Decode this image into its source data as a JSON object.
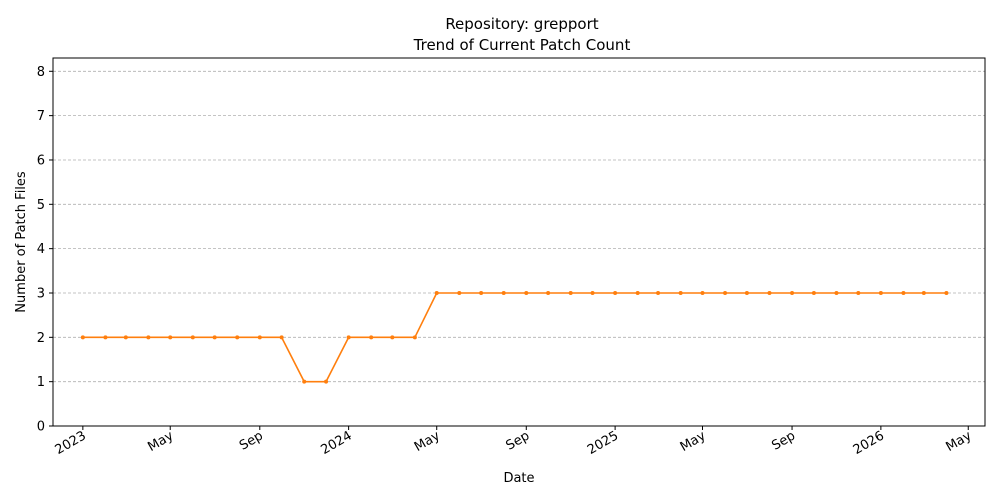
{
  "chart_data": {
    "type": "line",
    "title": "Repository: grepport",
    "subtitle": "Trend of Current Patch Count",
    "xlabel": "Date",
    "ylabel": "Number of Patch Files",
    "x_ticks": [
      {
        "date": "2023-01-01",
        "label": "2023"
      },
      {
        "date": "2023-05-01",
        "label": "May"
      },
      {
        "date": "2023-09-01",
        "label": "Sep"
      },
      {
        "date": "2024-01-01",
        "label": "2024"
      },
      {
        "date": "2024-05-01",
        "label": "May"
      },
      {
        "date": "2024-09-01",
        "label": "Sep"
      },
      {
        "date": "2025-01-01",
        "label": "2025"
      },
      {
        "date": "2025-05-01",
        "label": "May"
      },
      {
        "date": "2025-09-01",
        "label": "Sep"
      },
      {
        "date": "2026-01-01",
        "label": "2026"
      },
      {
        "date": "2026-05-01",
        "label": "May"
      }
    ],
    "y_ticks": [
      0,
      1,
      2,
      3,
      4,
      5,
      6,
      7,
      8
    ],
    "xlim": [
      "2022-11-21",
      "2026-05-24"
    ],
    "ylim": [
      0,
      8.3
    ],
    "grid": {
      "y": true,
      "x": false
    },
    "series_color": "#ff7f0e",
    "series": [
      {
        "points": [
          {
            "x": "2023-01-01",
            "y": 2
          },
          {
            "x": "2023-02-01",
            "y": 2
          },
          {
            "x": "2023-03-01",
            "y": 2
          },
          {
            "x": "2023-04-01",
            "y": 2
          },
          {
            "x": "2023-05-01",
            "y": 2
          },
          {
            "x": "2023-06-01",
            "y": 2
          },
          {
            "x": "2023-07-01",
            "y": 2
          },
          {
            "x": "2023-08-01",
            "y": 2
          },
          {
            "x": "2023-09-01",
            "y": 2
          },
          {
            "x": "2023-10-01",
            "y": 2
          },
          {
            "x": "2023-11-01",
            "y": 1
          },
          {
            "x": "2023-12-01",
            "y": 1
          },
          {
            "x": "2024-01-01",
            "y": 2
          },
          {
            "x": "2024-02-01",
            "y": 2
          },
          {
            "x": "2024-03-01",
            "y": 2
          },
          {
            "x": "2024-04-01",
            "y": 2
          },
          {
            "x": "2024-05-01",
            "y": 3
          },
          {
            "x": "2024-06-01",
            "y": 3
          },
          {
            "x": "2024-07-01",
            "y": 3
          },
          {
            "x": "2024-08-01",
            "y": 3
          },
          {
            "x": "2024-09-01",
            "y": 3
          },
          {
            "x": "2024-10-01",
            "y": 3
          },
          {
            "x": "2024-11-01",
            "y": 3
          },
          {
            "x": "2024-12-01",
            "y": 3
          },
          {
            "x": "2025-01-01",
            "y": 3
          },
          {
            "x": "2025-02-01",
            "y": 3
          },
          {
            "x": "2025-03-01",
            "y": 3
          },
          {
            "x": "2025-04-01",
            "y": 3
          },
          {
            "x": "2025-05-01",
            "y": 3
          },
          {
            "x": "2025-06-01",
            "y": 3
          },
          {
            "x": "2025-07-01",
            "y": 3
          },
          {
            "x": "2025-08-01",
            "y": 3
          },
          {
            "x": "2025-09-01",
            "y": 3
          },
          {
            "x": "2025-10-01",
            "y": 3
          },
          {
            "x": "2025-11-01",
            "y": 3
          },
          {
            "x": "2025-12-01",
            "y": 3
          },
          {
            "x": "2026-01-01",
            "y": 3
          },
          {
            "x": "2026-02-01",
            "y": 3
          },
          {
            "x": "2026-03-01",
            "y": 3
          },
          {
            "x": "2026-04-01",
            "y": 3
          }
        ]
      }
    ]
  }
}
